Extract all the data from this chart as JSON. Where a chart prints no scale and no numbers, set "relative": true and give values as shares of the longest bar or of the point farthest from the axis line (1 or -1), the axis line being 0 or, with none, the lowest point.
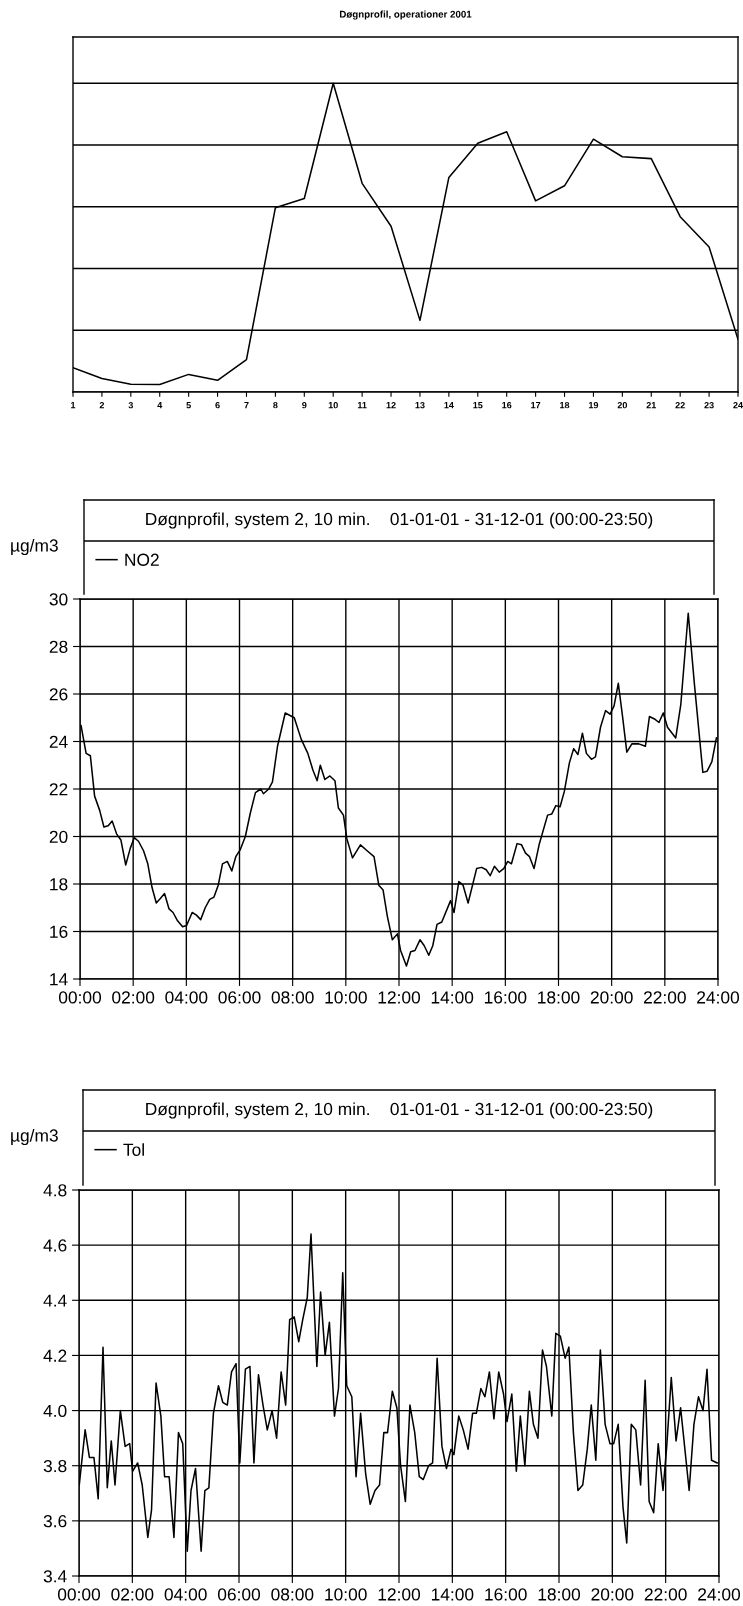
{
  "chart_data": [
    {
      "type": "line",
      "title": "Døgnprofil, operationer 2001",
      "relative": true,
      "grid": "y",
      "color": "#000000",
      "categories": [
        "1",
        "2",
        "3",
        "4",
        "5",
        "6",
        "7",
        "8",
        "9",
        "10",
        "11",
        "12",
        "13",
        "14",
        "15",
        "16",
        "17",
        "18",
        "19",
        "20",
        "21",
        "22",
        "23",
        "24"
      ],
      "values": [
        0.079,
        0.044,
        0.025,
        0.024,
        0.057,
        0.038,
        0.105,
        0.597,
        0.627,
        1,
        0.676,
        0.537,
        0.232,
        0.695,
        0.806,
        0.843,
        0.619,
        0.668,
        0.819,
        0.762,
        0.756,
        0.568,
        0.47,
        0.171
      ]
    },
    {
      "type": "line",
      "title": "Døgnprofil, system 2, 10 min.    01-01-01 - 31-12-01 (00:00-23:50)",
      "ylabel": "µg/m3",
      "grid": true,
      "legend": "top left",
      "xlim": [
        0,
        24
      ],
      "ylim": [
        14,
        30
      ],
      "yticks": [
        14,
        16,
        18,
        20,
        22,
        24,
        26,
        28,
        30
      ],
      "xticks": [
        {
          "value": 0,
          "label": "00:00"
        },
        {
          "value": 2,
          "label": "02:00"
        },
        {
          "value": 4,
          "label": "04:00"
        },
        {
          "value": 6,
          "label": "06:00"
        },
        {
          "value": 8,
          "label": "08:00"
        },
        {
          "value": 10,
          "label": "10:00"
        },
        {
          "value": 12,
          "label": "12:00"
        },
        {
          "value": 14,
          "label": "14:00"
        },
        {
          "value": 16,
          "label": "16:00"
        },
        {
          "value": 18,
          "label": "18:00"
        },
        {
          "value": 20,
          "label": "20:00"
        },
        {
          "value": 22,
          "label": "22:00"
        },
        {
          "value": 24,
          "label": "24:00"
        }
      ],
      "series": [
        {
          "name": "NO2",
          "color": "#000000",
          "x": [
            0.04,
            0.23,
            0.39,
            0.55,
            0.74,
            0.9,
            1.06,
            1.21,
            1.38,
            1.54,
            1.72,
            1.89,
            2.04,
            2.2,
            2.39,
            2.55,
            2.71,
            2.87,
            3.03,
            3.18,
            3.35,
            3.5,
            3.67,
            3.86,
            4.01,
            4.22,
            4.37,
            4.54,
            4.71,
            4.88,
            5.04,
            5.2,
            5.36,
            5.54,
            5.71,
            5.86,
            6.03,
            6.22,
            6.41,
            6.6,
            6.8,
            6.9,
            7.1,
            7.24,
            7.43,
            7.72,
            8.06,
            8.32,
            8.57,
            8.76,
            8.92,
            9.04,
            9.21,
            9.4,
            9.59,
            9.72,
            9.91,
            10.04,
            10.25,
            10.55,
            10.8,
            11.06,
            11.24,
            11.4,
            11.56,
            11.75,
            11.94,
            12.06,
            12.28,
            12.44,
            12.6,
            12.79,
            12.95,
            13.12,
            13.27,
            13.43,
            13.61,
            13.94,
            14.07,
            14.25,
            14.41,
            14.6,
            14.92,
            15.11,
            15.28,
            15.43,
            15.59,
            15.77,
            15.94,
            16.09,
            16.23,
            16.44,
            16.61,
            16.76,
            16.91,
            17.08,
            17.27,
            17.59,
            17.75,
            17.9,
            18.06,
            18.22,
            18.41,
            18.57,
            18.73,
            18.9,
            19.05,
            19.24,
            19.39,
            19.58,
            19.77,
            19.94,
            20.09,
            20.25,
            20.41,
            20.57,
            20.76,
            21.02,
            21.27,
            21.42,
            21.61,
            21.78,
            21.94,
            22.1,
            22.41,
            22.6,
            22.88,
            23.11,
            23.43,
            23.59,
            23.77,
            23.94
          ],
          "values": [
            24.67,
            23.5,
            23.4,
            21.7,
            21.1,
            20.4,
            20.45,
            20.65,
            20.1,
            19.85,
            18.8,
            19.5,
            19.95,
            19.8,
            19.4,
            18.85,
            17.85,
            17.2,
            17.4,
            17.6,
            16.95,
            16.8,
            16.45,
            16.2,
            16.25,
            16.8,
            16.7,
            16.5,
            17.0,
            17.35,
            17.45,
            17.95,
            18.85,
            18.95,
            18.55,
            19.15,
            19.45,
            20.0,
            21.0,
            21.85,
            22.0,
            21.8,
            22.0,
            22.3,
            23.8,
            25.2,
            25.0,
            24.1,
            23.5,
            22.8,
            22.35,
            23.0,
            22.4,
            22.55,
            22.35,
            21.2,
            20.9,
            19.9,
            19.1,
            19.65,
            19.4,
            19.15,
            17.95,
            17.75,
            16.65,
            15.65,
            15.9,
            15.2,
            14.55,
            15.15,
            15.2,
            15.65,
            15.4,
            15.0,
            15.4,
            16.3,
            16.4,
            17.3,
            16.8,
            18.1,
            17.95,
            17.2,
            18.65,
            18.7,
            18.6,
            18.35,
            18.75,
            18.5,
            18.65,
            18.95,
            18.85,
            19.7,
            19.65,
            19.3,
            19.15,
            18.65,
            19.65,
            20.9,
            20.95,
            21.3,
            21.25,
            21.9,
            23.1,
            23.7,
            23.45,
            24.35,
            23.5,
            23.25,
            23.35,
            24.6,
            25.3,
            25.15,
            25.5,
            26.45,
            25.05,
            23.55,
            23.9,
            23.9,
            23.8,
            25.05,
            24.95,
            24.8,
            25.2,
            24.6,
            24.15,
            25.55,
            29.4,
            26.45,
            22.7,
            22.75,
            23.15,
            24.15
          ]
        }
      ]
    },
    {
      "type": "line",
      "title": "Døgnprofil, system 2, 10 min.    01-01-01 - 31-12-01 (00:00-23:50)",
      "ylabel": "µg/m3",
      "grid": true,
      "legend": "top left",
      "xlim": [
        0,
        24
      ],
      "ylim": [
        3.4,
        4.8
      ],
      "yticks": [
        {
          "value": 3.4,
          "label": "3.4"
        },
        {
          "value": 3.6,
          "label": "3.6"
        },
        {
          "value": 3.8,
          "label": "3.8"
        },
        {
          "value": 4.0,
          "label": "4.0"
        },
        {
          "value": 4.2,
          "label": "4.2"
        },
        {
          "value": 4.4,
          "label": "4.4"
        },
        {
          "value": 4.6,
          "label": "4.6"
        },
        {
          "value": 4.8,
          "label": "4.8"
        }
      ],
      "xticks": [
        {
          "value": 0,
          "label": "00:00"
        },
        {
          "value": 2,
          "label": "02:00"
        },
        {
          "value": 4,
          "label": "04:00"
        },
        {
          "value": 6,
          "label": "06:00"
        },
        {
          "value": 8,
          "label": "08:00"
        },
        {
          "value": 10,
          "label": "10:00"
        },
        {
          "value": 12,
          "label": "12:00"
        },
        {
          "value": 14,
          "label": "14:00"
        },
        {
          "value": 16,
          "label": "16:00"
        },
        {
          "value": 18,
          "label": "18:00"
        },
        {
          "value": 20,
          "label": "20:00"
        },
        {
          "value": 22,
          "label": "22:00"
        },
        {
          "value": 24,
          "label": "24:00"
        }
      ],
      "series": [
        {
          "name": "Tol",
          "color": "#000000",
          "x": [
            0.01,
            0.23,
            0.39,
            0.56,
            0.72,
            0.9,
            1.06,
            1.21,
            1.35,
            1.55,
            1.73,
            1.9,
            2.01,
            2.2,
            2.37,
            2.58,
            2.72,
            2.89,
            3.07,
            3.21,
            3.38,
            3.56,
            3.73,
            3.89,
            4.06,
            4.2,
            4.37,
            4.58,
            4.72,
            4.87,
            5.04,
            5.23,
            5.39,
            5.56,
            5.72,
            5.89,
            6.03,
            6.24,
            6.41,
            6.56,
            6.73,
            6.9,
            7.06,
            7.24,
            7.41,
            7.58,
            7.75,
            7.9,
            8.07,
            8.24,
            8.39,
            8.56,
            8.7,
            8.92,
            9.06,
            9.23,
            9.39,
            9.58,
            9.73,
            9.89,
            10.04,
            10.23,
            10.39,
            10.56,
            10.75,
            10.92,
            11.1,
            11.27,
            11.43,
            11.57,
            11.75,
            11.92,
            12.06,
            12.24,
            12.41,
            12.59,
            12.76,
            12.91,
            13.11,
            13.26,
            13.43,
            13.61,
            13.78,
            13.95,
            14.06,
            14.24,
            14.41,
            14.59,
            14.76,
            14.9,
            15.07,
            15.22,
            15.39,
            15.56,
            15.74,
            15.92,
            16.05,
            16.23,
            16.4,
            16.55,
            16.72,
            16.89,
            17.04,
            17.21,
            17.38,
            17.53,
            17.73,
            17.88,
            18.05,
            18.23,
            18.37,
            18.54,
            18.71,
            18.89,
            19.06,
            19.21,
            19.38,
            19.55,
            19.73,
            19.91,
            20.05,
            20.22,
            20.4,
            20.54,
            20.71,
            20.88,
            21.06,
            21.23,
            21.38,
            21.55,
            21.72,
            21.9,
            22.04,
            22.21,
            22.39,
            22.56,
            22.71,
            22.88,
            23.06,
            23.23,
            23.4,
            23.55,
            23.72,
            23.93
          ],
          "values": [
            3.73,
            3.93,
            3.83,
            3.83,
            3.68,
            4.23,
            3.72,
            3.89,
            3.73,
            4.0,
            3.87,
            3.88,
            3.78,
            3.81,
            3.73,
            3.54,
            3.64,
            4.1,
            3.98,
            3.76,
            3.76,
            3.54,
            3.92,
            3.88,
            3.49,
            3.71,
            3.79,
            3.49,
            3.71,
            3.72,
            3.99,
            4.09,
            4.03,
            4.02,
            4.14,
            4.17,
            3.81,
            4.15,
            4.16,
            3.81,
            4.13,
            4.02,
            3.93,
            4.0,
            3.9,
            4.14,
            4.02,
            4.33,
            4.34,
            4.25,
            4.33,
            4.41,
            4.64,
            4.16,
            4.43,
            4.2,
            4.32,
            3.98,
            4.08,
            4.5,
            4.09,
            4.05,
            3.76,
            3.99,
            3.77,
            3.66,
            3.71,
            3.73,
            3.92,
            3.92,
            4.07,
            4.01,
            3.8,
            3.67,
            4.02,
            3.92,
            3.76,
            3.75,
            3.8,
            3.81,
            4.19,
            3.87,
            3.79,
            3.86,
            3.84,
            3.98,
            3.93,
            3.86,
            3.99,
            3.99,
            4.08,
            4.05,
            4.14,
            3.97,
            4.14,
            4.06,
            3.96,
            4.06,
            3.78,
            3.98,
            3.8,
            4.07,
            3.95,
            3.9,
            4.22,
            4.16,
            3.98,
            4.28,
            4.27,
            4.19,
            4.23,
            3.92,
            3.71,
            3.73,
            3.86,
            4.02,
            3.82,
            4.22,
            3.95,
            3.88,
            3.88,
            3.95,
            3.65,
            3.52,
            3.95,
            3.93,
            3.73,
            4.11,
            3.67,
            3.63,
            3.88,
            3.71,
            3.87,
            4.12,
            3.89,
            4.01,
            3.87,
            3.71,
            3.95,
            4.05,
            4.0,
            4.15,
            3.82,
            3.81
          ]
        }
      ]
    }
  ]
}
